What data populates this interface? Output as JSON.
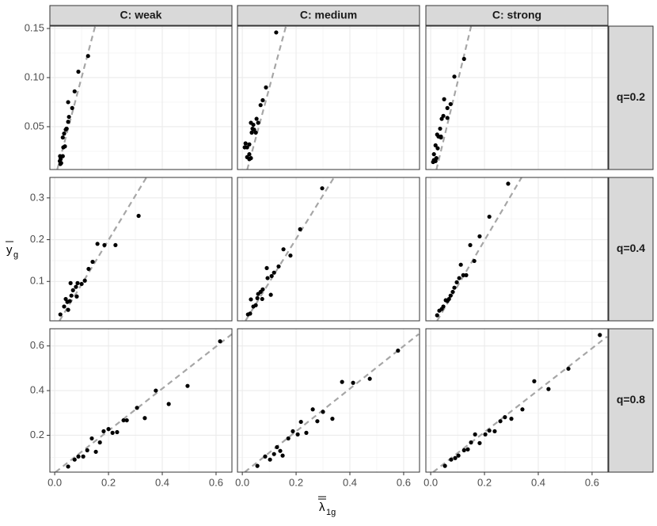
{
  "chart_data": {
    "type": "scatter",
    "xlabel": {
      "symbol": "λ",
      "subscript": "1g"
    },
    "ylabel": {
      "symbol": "y",
      "subscript": "g"
    },
    "columns": [
      "C: weak",
      "C: medium",
      "C: strong"
    ],
    "rows": [
      {
        "label": "q=0.2",
        "ylim": [
          0.0064,
          0.1524
        ],
        "yticks": [
          0.05,
          {
            "value": 0.1,
            "label": "0.10"
          },
          0.15
        ]
      },
      {
        "label": "q=0.4",
        "ylim": [
          0.0057,
          0.349
        ],
        "yticks": [
          0.1,
          0.2,
          0.3
        ]
      },
      {
        "label": "q=0.8",
        "ylim": [
          0.035,
          0.677
        ],
        "yticks": [
          0.2,
          0.4,
          0.6
        ]
      }
    ],
    "xlim": [
      -0.018,
      0.659
    ],
    "xticks": [
      {
        "value": 0,
        "label": "0.0"
      },
      0.2,
      0.4,
      0.6
    ],
    "grid": true,
    "point_color": "#000000",
    "fit_color": "#a6a6a6",
    "panels": [
      {
        "x": [
          0.124,
          0.088,
          0.074,
          0.065,
          0.05,
          0.053,
          0.05,
          0.044,
          0.044,
          0.041,
          0.035,
          0.03,
          0.038,
          0.032,
          0.03,
          0.02,
          0.022,
          0.019,
          0.024,
          0.021
        ],
        "y": [
          0.122,
          0.106,
          0.086,
          0.069,
          0.075,
          0.06,
          0.055,
          0.048,
          0.048,
          0.047,
          0.043,
          0.039,
          0.03,
          0.029,
          0.02,
          0.02,
          0.017,
          0.015,
          0.013,
          0.012
        ],
        "fit": {
          "x": [
            0.009,
            0.15
          ],
          "y": [
            0.006,
            0.152
          ]
        }
      },
      {
        "x": [
          0.126,
          0.088,
          0.076,
          0.068,
          0.053,
          0.059,
          0.041,
          0.032,
          0.044,
          0.035,
          0.05,
          0.012,
          0.026,
          0.018,
          0.009,
          0.026,
          0.018,
          0.026,
          0.032,
          0.038
        ],
        "y": [
          0.146,
          0.09,
          0.077,
          0.072,
          0.058,
          0.054,
          0.052,
          0.054,
          0.047,
          0.044,
          0.044,
          0.033,
          0.032,
          0.029,
          0.029,
          0.022,
          0.019,
          0.017,
          0.018,
          0.048
        ],
        "fit": {
          "x": [
            0.018,
            0.162
          ],
          "y": [
            0.006,
            0.152
          ]
        }
      },
      {
        "x": [
          0.124,
          0.088,
          0.074,
          0.062,
          0.05,
          0.047,
          0.062,
          0.041,
          0.035,
          0.024,
          0.038,
          0.029,
          0.038,
          0.018,
          0.026,
          0.012,
          0.021,
          0.012,
          0.009,
          0.018
        ],
        "y": [
          0.119,
          0.101,
          0.073,
          0.069,
          0.078,
          0.061,
          0.059,
          0.058,
          0.048,
          0.042,
          0.04,
          0.04,
          0.039,
          0.031,
          0.028,
          0.022,
          0.018,
          0.016,
          0.014,
          0.015
        ],
        "fit": {
          "x": [
            0.021,
            0.15
          ],
          "y": [
            0.006,
            0.152
          ]
        }
      },
      {
        "x": [
          0.312,
          0.226,
          0.185,
          0.159,
          0.141,
          0.126,
          0.112,
          0.1,
          0.085,
          0.079,
          0.082,
          0.068,
          0.062,
          0.059,
          0.056,
          0.047,
          0.041,
          0.05,
          0.035,
          0.021
        ],
        "y": [
          0.257,
          0.187,
          0.187,
          0.19,
          0.147,
          0.13,
          0.102,
          0.094,
          0.096,
          0.087,
          0.064,
          0.079,
          0.066,
          0.096,
          0.053,
          0.051,
          0.058,
          0.032,
          0.04,
          0.021
        ],
        "fit": {
          "x": [
            0.018,
            0.341
          ],
          "y": [
            0.006,
            0.349
          ]
        }
      },
      {
        "x": [
          0.297,
          0.215,
          0.179,
          0.153,
          0.135,
          0.118,
          0.109,
          0.091,
          0.094,
          0.106,
          0.076,
          0.068,
          0.059,
          0.074,
          0.056,
          0.05,
          0.041,
          0.029,
          0.021,
          0.032
        ],
        "y": [
          0.323,
          0.225,
          0.162,
          0.177,
          0.136,
          0.121,
          0.113,
          0.132,
          0.108,
          0.068,
          0.081,
          0.075,
          0.07,
          0.058,
          0.06,
          0.043,
          0.04,
          0.023,
          0.021,
          0.057
        ],
        "fit": {
          "x": [
            0.012,
            0.341
          ],
          "y": [
            0.006,
            0.349
          ]
        }
      },
      {
        "x": [
          0.288,
          0.218,
          0.182,
          0.147,
          0.162,
          0.112,
          0.132,
          0.121,
          0.106,
          0.097,
          0.088,
          0.082,
          0.074,
          0.068,
          0.062,
          0.056,
          0.047,
          0.041,
          0.032,
          0.024
        ],
        "y": [
          0.334,
          0.255,
          0.208,
          0.187,
          0.149,
          0.14,
          0.115,
          0.115,
          0.108,
          0.098,
          0.085,
          0.075,
          0.066,
          0.058,
          0.053,
          0.055,
          0.04,
          0.034,
          0.03,
          0.019
        ],
        "fit": {
          "x": [
            0.024,
            0.338
          ],
          "y": [
            0.006,
            0.349
          ]
        }
      },
      {
        "x": [
          0.615,
          0.494,
          0.424,
          0.376,
          0.335,
          0.306,
          0.268,
          0.256,
          0.232,
          0.215,
          0.2,
          0.182,
          0.168,
          0.138,
          0.153,
          0.121,
          0.106,
          0.088,
          0.074,
          0.05
        ],
        "y": [
          0.621,
          0.421,
          0.34,
          0.4,
          0.277,
          0.323,
          0.267,
          0.267,
          0.214,
          0.211,
          0.228,
          0.218,
          0.168,
          0.186,
          0.126,
          0.133,
          0.105,
          0.105,
          0.091,
          0.06
        ],
        "fit": {
          "x": [
            0.003,
            0.659
          ],
          "y": [
            0.035,
            0.653
          ]
        }
      },
      {
        "x": [
          0.579,
          0.474,
          0.412,
          0.371,
          0.335,
          0.3,
          0.279,
          0.262,
          0.238,
          0.218,
          0.206,
          0.188,
          0.171,
          0.15,
          0.141,
          0.129,
          0.118,
          0.103,
          0.085,
          0.056
        ],
        "y": [
          0.579,
          0.453,
          0.435,
          0.439,
          0.274,
          0.305,
          0.263,
          0.316,
          0.211,
          0.26,
          0.204,
          0.218,
          0.186,
          0.109,
          0.13,
          0.147,
          0.116,
          0.091,
          0.105,
          0.063
        ],
        "fit": {
          "x": [
            0.009,
            0.656
          ],
          "y": [
            0.035,
            0.653
          ]
        }
      },
      {
        "x": [
          0.629,
          0.512,
          0.385,
          0.438,
          0.341,
          0.3,
          0.276,
          0.259,
          0.238,
          0.218,
          0.203,
          0.182,
          0.165,
          0.15,
          0.138,
          0.124,
          0.103,
          0.091,
          0.076,
          0.053
        ],
        "y": [
          0.649,
          0.498,
          0.442,
          0.407,
          0.316,
          0.274,
          0.281,
          0.263,
          0.218,
          0.221,
          0.204,
          0.165,
          0.204,
          0.168,
          0.137,
          0.133,
          0.109,
          0.098,
          0.091,
          0.063
        ],
        "fit": {
          "x": [
            0.009,
            0.656
          ],
          "y": [
            0.035,
            0.642
          ]
        }
      }
    ]
  }
}
